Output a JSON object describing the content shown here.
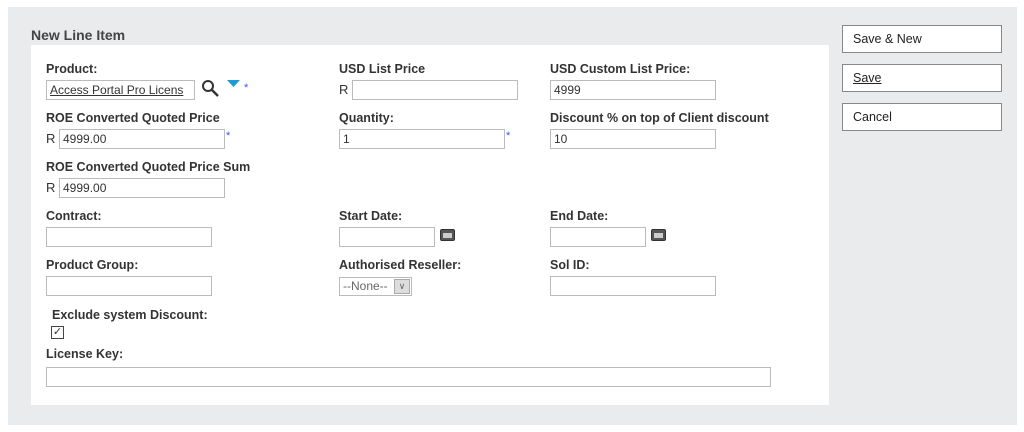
{
  "title": "New Line Item",
  "buttons": {
    "save_new": "Save & New",
    "save": "Save",
    "cancel": "Cancel"
  },
  "fields": {
    "product": {
      "label": "Product:",
      "value": "Access Portal Pro Licens"
    },
    "usd_list": {
      "label": "USD List Price",
      "prefix": "R",
      "value": ""
    },
    "usd_custom": {
      "label": "USD Custom List Price:",
      "value": "4999"
    },
    "roe_price": {
      "label": "ROE Converted Quoted Price",
      "prefix": "R",
      "value": "4999.00"
    },
    "quantity": {
      "label": "Quantity:",
      "value": "1"
    },
    "discount": {
      "label": "Discount % on top of Client discount",
      "value": "10"
    },
    "roe_sum": {
      "label": "ROE Converted Quoted Price Sum",
      "prefix": "R",
      "value": "4999.00"
    },
    "contract": {
      "label": "Contract:",
      "value": ""
    },
    "start_date": {
      "label": "Start Date:",
      "value": ""
    },
    "end_date": {
      "label": "End Date:",
      "value": ""
    },
    "product_group": {
      "label": "Product Group:",
      "value": ""
    },
    "reseller": {
      "label": "Authorised Reseller:",
      "value": "--None--"
    },
    "sol_id": {
      "label": "Sol ID:",
      "value": ""
    },
    "exclude": {
      "label": "Exclude system Discount:",
      "checked": true
    },
    "license_key": {
      "label": "License Key:",
      "value": ""
    }
  },
  "required_mark": "*",
  "colors": {
    "accent": "#1a9ad6",
    "required": "#3355ff"
  }
}
